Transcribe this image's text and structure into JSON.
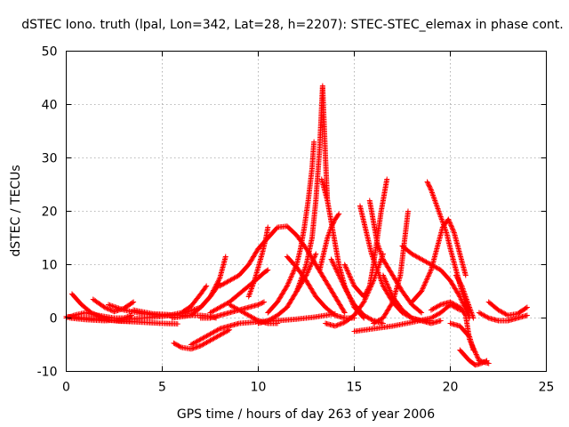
{
  "chart_data": {
    "type": "scatter",
    "title": "dSTEC Iono. truth (lpal, Lon=342, Lat=28, h=2207): STEC-STEC_elemax in phase cont.",
    "xlabel": "GPS time / hours of day 263 of year 2006",
    "ylabel": "dSTEC  / TECUs",
    "xlim": [
      0,
      25
    ],
    "ylim": [
      -10,
      50
    ],
    "xticks": [
      "0",
      "5",
      "10",
      "15",
      "20",
      "25"
    ],
    "yticks": [
      "-10",
      "0",
      "10",
      "20",
      "30",
      "40",
      "50"
    ],
    "grid": true,
    "marker": "+",
    "series_color": "#ff0000",
    "tracks": [
      {
        "x": [
          0.0,
          0.5,
          1.0,
          1.5,
          2.0,
          2.5,
          3.0,
          3.4
        ],
        "y": [
          0.0,
          0.6,
          1.0,
          0.6,
          0.3,
          0.0,
          0.0,
          0.5
        ]
      },
      {
        "x": [
          0.3,
          0.8,
          1.3,
          1.8,
          2.3,
          2.8,
          3.3
        ],
        "y": [
          4.5,
          2.5,
          1.0,
          0.2,
          -0.4,
          -0.6,
          -0.6
        ]
      },
      {
        "x": [
          0.0,
          1.0,
          2.0,
          3.0,
          4.0,
          5.0,
          5.8
        ],
        "y": [
          0.3,
          0.0,
          -0.3,
          -0.6,
          -0.8,
          -1.0,
          -1.1
        ]
      },
      {
        "x": [
          1.4,
          2.0,
          2.5,
          3.0,
          3.5
        ],
        "y": [
          3.5,
          2.0,
          1.2,
          1.8,
          3.0
        ]
      },
      {
        "x": [
          0.2,
          1.0,
          2.0,
          3.0,
          4.0,
          5.0,
          6.0,
          7.0,
          7.5,
          8.0,
          8.3
        ],
        "y": [
          0.0,
          -0.3,
          -0.5,
          -0.3,
          0.0,
          0.3,
          0.8,
          2.0,
          4.0,
          7.5,
          11.5
        ]
      },
      {
        "x": [
          2.2,
          3.0,
          4.0,
          5.0,
          6.0,
          7.0,
          7.5,
          7.8
        ],
        "y": [
          2.5,
          1.5,
          0.8,
          0.5,
          0.5,
          0.5,
          0.3,
          0.0
        ]
      },
      {
        "x": [
          3.5,
          4.5,
          5.5,
          6.0,
          6.5,
          7.0,
          7.3
        ],
        "y": [
          1.5,
          0.8,
          0.6,
          1.0,
          2.2,
          4.5,
          6.0
        ]
      },
      {
        "x": [
          5.5,
          6.5,
          7.0,
          7.5,
          8.0
        ],
        "y": [
          0.0,
          0.5,
          2.0,
          4.0,
          6.5
        ]
      },
      {
        "x": [
          5.6,
          6.0,
          6.5,
          7.0,
          7.5,
          8.0,
          8.5
        ],
        "y": [
          -4.7,
          -5.5,
          -5.8,
          -5.2,
          -4.2,
          -3.2,
          -2.2
        ]
      },
      {
        "x": [
          6.5,
          7.0,
          7.5,
          8.0,
          8.5,
          9.0,
          10.0,
          11.0,
          12.0,
          13.0,
          14.0
        ],
        "y": [
          -5.0,
          -4.0,
          -3.0,
          -2.0,
          -1.5,
          -1.0,
          -0.7,
          -0.5,
          -0.2,
          0.2,
          0.8
        ]
      },
      {
        "x": [
          7.0,
          7.5,
          8.0,
          8.5,
          9.0,
          9.5,
          10.0,
          10.3
        ],
        "y": [
          0.0,
          0.0,
          0.5,
          1.0,
          1.5,
          2.0,
          2.5,
          3.0
        ]
      },
      {
        "x": [
          7.5,
          8.0,
          8.5,
          9.0,
          9.5,
          10.0,
          10.3,
          10.5
        ],
        "y": [
          1.0,
          2.0,
          3.0,
          4.5,
          6.0,
          7.5,
          8.5,
          9.0
        ]
      },
      {
        "x": [
          8.5,
          9.0,
          9.5,
          10.0,
          10.5,
          11.0
        ],
        "y": [
          2.5,
          1.5,
          0.5,
          -0.5,
          -1.0,
          -1.0
        ]
      },
      {
        "x": [
          8.0,
          9.0,
          9.5,
          10.0,
          10.5,
          11.0,
          11.5,
          12.0,
          12.5,
          13.0,
          13.5,
          14.0,
          14.5
        ],
        "y": [
          6.0,
          8.0,
          10.0,
          13.0,
          15.0,
          17.0,
          17.2,
          15.5,
          13.0,
          10.0,
          7.0,
          4.0,
          1.0
        ]
      },
      {
        "x": [
          9.5,
          9.8,
          10.0,
          10.2,
          10.4,
          10.5
        ],
        "y": [
          4.0,
          7.0,
          9.5,
          12.0,
          15.0,
          17.0
        ]
      },
      {
        "x": [
          10.0,
          10.5,
          11.0,
          11.5,
          12.0,
          12.5,
          13.0
        ],
        "y": [
          -1.0,
          -0.5,
          0.5,
          2.0,
          5.0,
          8.0,
          12.0
        ]
      },
      {
        "x": [
          10.5,
          11.0,
          11.5,
          12.0,
          12.2,
          12.4,
          12.6,
          12.8,
          12.9
        ],
        "y": [
          1.0,
          3.0,
          6.0,
          10.0,
          13.0,
          17.0,
          22.0,
          28.0,
          33.0
        ]
      },
      {
        "x": [
          11.5,
          12.0,
          12.5,
          13.0,
          13.5,
          14.0,
          14.5,
          15.0
        ],
        "y": [
          11.5,
          9.5,
          7.0,
          4.0,
          2.0,
          0.5,
          0.0,
          0.0
        ]
      },
      {
        "x": [
          12.0,
          12.5,
          12.8,
          13.0,
          13.2,
          13.35,
          13.5,
          13.6
        ],
        "y": [
          5.0,
          10.0,
          15.0,
          22.0,
          32.0,
          43.5,
          30.0,
          22.0
        ]
      },
      {
        "x": [
          13.3,
          13.6,
          13.8,
          14.0,
          14.2,
          14.5,
          15.0,
          15.5
        ],
        "y": [
          26.0,
          22.0,
          18.0,
          14.0,
          10.0,
          6.0,
          2.0,
          0.0
        ]
      },
      {
        "x": [
          13.2,
          13.4,
          13.6,
          13.8,
          14.0,
          14.2
        ],
        "y": [
          9.0,
          12.0,
          15.0,
          17.0,
          18.5,
          19.5
        ]
      },
      {
        "x": [
          13.8,
          14.2,
          14.6,
          15.0,
          15.5,
          16.0,
          16.5
        ],
        "y": [
          11.0,
          8.0,
          5.0,
          2.5,
          0.5,
          -0.5,
          -1.0
        ]
      },
      {
        "x": [
          13.5,
          14.0,
          14.5,
          15.0,
          15.5,
          16.0,
          16.5
        ],
        "y": [
          -1.0,
          -1.5,
          -0.8,
          0.5,
          3.0,
          7.0,
          12.0
        ]
      },
      {
        "x": [
          14.5,
          15.0,
          15.5,
          15.8,
          16.0,
          16.2,
          16.4,
          16.6,
          16.7
        ],
        "y": [
          10.0,
          6.0,
          4.0,
          6.0,
          10.0,
          15.0,
          20.0,
          24.0,
          26.0
        ]
      },
      {
        "x": [
          15.3,
          15.5,
          15.7,
          15.9,
          16.2,
          16.5,
          17.0,
          17.5,
          18.0,
          18.5,
          19.0
        ],
        "y": [
          21.0,
          18.0,
          15.0,
          12.0,
          9.0,
          6.0,
          3.0,
          1.0,
          0.0,
          -0.5,
          -0.5
        ]
      },
      {
        "x": [
          15.8,
          16.0,
          16.2,
          16.5,
          17.0,
          17.5,
          18.0,
          18.5
        ],
        "y": [
          22.0,
          18.0,
          14.0,
          11.0,
          8.0,
          5.0,
          2.5,
          1.0
        ]
      },
      {
        "x": [
          15.0,
          16.0,
          17.0,
          18.0,
          19.0,
          19.5,
          20.0,
          20.5
        ],
        "y": [
          -2.5,
          -2.0,
          -1.5,
          -0.8,
          0.0,
          1.0,
          2.5,
          1.5
        ]
      },
      {
        "x": [
          16.0,
          16.5,
          17.0,
          17.4,
          17.6,
          17.8
        ],
        "y": [
          -1.0,
          0.0,
          3.0,
          8.0,
          14.0,
          20.0
        ]
      },
      {
        "x": [
          16.5,
          17.0,
          17.5,
          18.0,
          18.5,
          19.0,
          19.5
        ],
        "y": [
          8.0,
          4.0,
          1.5,
          0.0,
          -0.5,
          -1.0,
          -0.5
        ]
      },
      {
        "x": [
          17.5,
          18.0,
          18.5,
          19.0,
          19.5,
          20.0,
          20.5,
          21.0
        ],
        "y": [
          13.5,
          12.0,
          11.0,
          10.0,
          9.0,
          7.0,
          4.0,
          0.0
        ]
      },
      {
        "x": [
          18.8,
          19.0,
          19.2,
          19.4,
          19.6,
          19.8,
          20.0,
          20.3,
          20.6,
          21.0
        ],
        "y": [
          25.5,
          24.0,
          22.0,
          20.0,
          18.0,
          16.0,
          13.0,
          9.0,
          5.0,
          1.0
        ]
      },
      {
        "x": [
          18.0,
          18.5,
          19.0,
          19.3,
          19.6,
          19.9,
          20.2,
          20.5,
          20.8
        ],
        "y": [
          3.0,
          5.0,
          9.0,
          13.0,
          17.0,
          18.5,
          16.0,
          12.0,
          8.0
        ]
      },
      {
        "x": [
          19.0,
          19.5,
          20.0,
          20.5,
          20.8,
          21.0,
          21.5,
          22.0
        ],
        "y": [
          1.5,
          2.5,
          3.0,
          2.0,
          0.5,
          -4.0,
          -8.0,
          -8.5
        ]
      },
      {
        "x": [
          20.3,
          20.6,
          20.9,
          21.2
        ],
        "y": [
          8.0,
          6.0,
          3.0,
          0.0
        ]
      },
      {
        "x": [
          20.0,
          20.5,
          21.0,
          21.2
        ],
        "y": [
          -1.0,
          -1.5,
          -3.5,
          -6.0
        ]
      },
      {
        "x": [
          20.5,
          21.0,
          21.3,
          21.6,
          21.9
        ],
        "y": [
          -6.0,
          -8.0,
          -8.8,
          -8.5,
          -8.0
        ]
      },
      {
        "x": [
          21.5,
          22.0,
          22.5,
          23.0,
          23.5,
          24.0
        ],
        "y": [
          1.0,
          0.0,
          -0.5,
          -0.5,
          0.0,
          0.5
        ]
      },
      {
        "x": [
          22.0,
          22.5,
          23.0,
          23.5,
          24.0
        ],
        "y": [
          3.0,
          1.5,
          0.5,
          0.8,
          2.0
        ]
      }
    ]
  }
}
